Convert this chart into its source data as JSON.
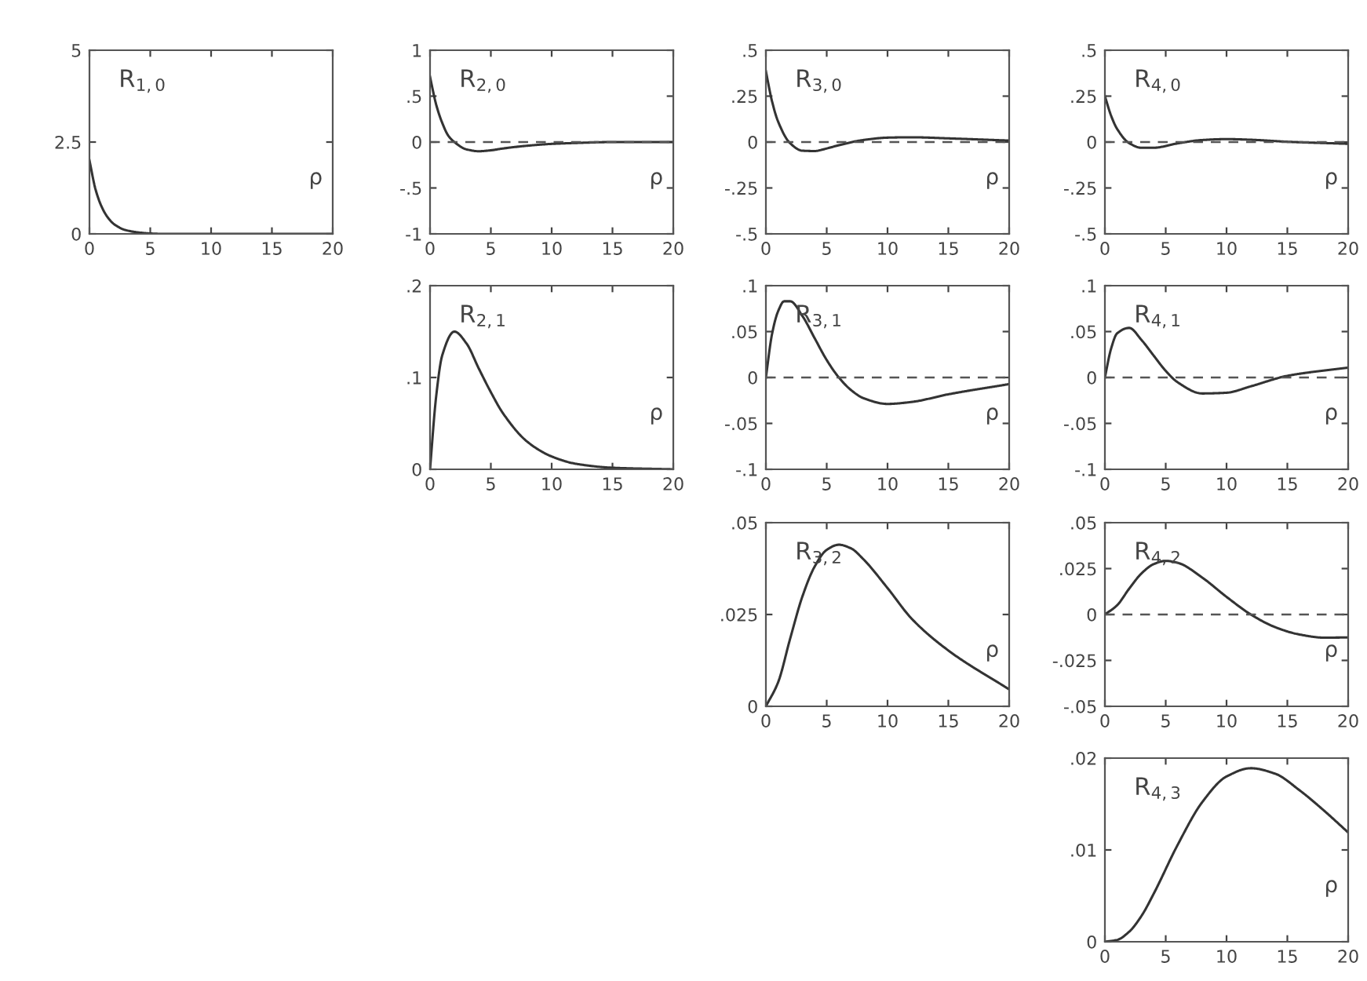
{
  "chart_data": [
    {
      "type": "line",
      "title": "R$_{1,0}$",
      "xlabel": "ρ",
      "color": "#333333",
      "x": [
        0,
        0.5,
        1,
        1.5,
        2,
        3,
        4,
        5,
        6,
        8,
        10,
        12,
        15,
        20
      ],
      "values": [
        2,
        1.21,
        0.74,
        0.45,
        0.27,
        0.1,
        0.04,
        0.01,
        0,
        0,
        0,
        0,
        0,
        0
      ],
      "xlim": [
        0,
        20
      ],
      "xticks": [
        0,
        5,
        10,
        15,
        20
      ],
      "ylim": [
        0,
        5
      ],
      "yticks": [
        0,
        2.5,
        5
      ]
    },
    {
      "type": "line",
      "title": "R$_{2,0}$",
      "xlabel": "ρ",
      "color": "#333333",
      "x": [
        0,
        0.5,
        1,
        1.5,
        2,
        3,
        4,
        5,
        6,
        8,
        10,
        12,
        15,
        20
      ],
      "values": [
        0.71,
        0.41,
        0.21,
        0.07,
        0,
        -0.08,
        -0.1,
        -0.09,
        -0.07,
        -0.04,
        -0.02,
        -0.01,
        0,
        0
      ],
      "xlim": [
        0,
        20
      ],
      "xticks": [
        0,
        5,
        10,
        15,
        20
      ],
      "ylim": [
        -1,
        1
      ],
      "yticks": [
        {
          "value": -1,
          "label": "-1"
        },
        {
          "value": -0.5,
          "label": "-.5"
        },
        0,
        {
          "value": 0.5,
          "label": ".5"
        },
        1
      ],
      "ref_lines": [
        {
          "axis": "y",
          "value": 0,
          "line_style": "dashed",
          "color": "#555555"
        }
      ]
    },
    {
      "type": "line",
      "title": "R$_{3,0}$",
      "xlabel": "ρ",
      "color": "#333333",
      "x": [
        0,
        0.5,
        1,
        2,
        3,
        4,
        5,
        6,
        8,
        10,
        12,
        15,
        20
      ],
      "values": [
        0.385,
        0.223,
        0.112,
        -0.007,
        -0.047,
        -0.049,
        -0.035,
        -0.017,
        0.011,
        0.024,
        0.026,
        0.02,
        0.008
      ],
      "xlim": [
        0,
        20
      ],
      "xticks": [
        0,
        5,
        10,
        15,
        20
      ],
      "ylim": [
        -0.5,
        0.5
      ],
      "yticks": [
        {
          "value": -0.5,
          "label": "-.5"
        },
        {
          "value": -0.25,
          "label": "-.25"
        },
        0,
        {
          "value": 0.25,
          "label": ".25"
        },
        {
          "value": 0.5,
          "label": ".5"
        }
      ],
      "ref_lines": [
        {
          "axis": "y",
          "value": 0,
          "line_style": "dashed",
          "color": "#555555"
        }
      ]
    },
    {
      "type": "line",
      "title": "R$_{4,0}$",
      "xlabel": "ρ",
      "color": "#333333",
      "x": [
        0,
        0.5,
        1,
        2,
        3,
        4,
        6,
        8,
        10,
        12,
        15,
        20
      ],
      "values": [
        0.25,
        0.145,
        0.072,
        -0.006,
        -0.031,
        -0.031,
        -0.007,
        0.011,
        0.016,
        0.0125,
        0.0016,
        -0.0095
      ],
      "xlim": [
        0,
        20
      ],
      "xticks": [
        0,
        5,
        10,
        15,
        20
      ],
      "ylim": [
        -0.5,
        0.5
      ],
      "yticks": [
        {
          "value": -0.5,
          "label": "-.5"
        },
        {
          "value": -0.25,
          "label": "-.25"
        },
        0,
        {
          "value": 0.25,
          "label": ".25"
        },
        {
          "value": 0.5,
          "label": ".5"
        }
      ],
      "ref_lines": [
        {
          "axis": "y",
          "value": 0,
          "line_style": "dashed",
          "color": "#555555"
        }
      ]
    },
    {
      "type": "line",
      "title": "R$_{2,1}$",
      "xlabel": "ρ",
      "color": "#333333",
      "x": [
        0,
        0.5,
        1,
        2,
        3,
        4,
        5,
        6,
        8,
        10,
        12,
        15,
        20
      ],
      "values": [
        0,
        0.079,
        0.124,
        0.15,
        0.137,
        0.11,
        0.084,
        0.061,
        0.03,
        0.014,
        0.006,
        0.0017,
        0
      ],
      "xlim": [
        0,
        20
      ],
      "xticks": [
        0,
        5,
        10,
        15,
        20
      ],
      "ylim": [
        0,
        0.2
      ],
      "yticks": [
        0,
        {
          "value": 0.1,
          "label": ".1"
        },
        {
          "value": 0.2,
          "label": ".2"
        }
      ]
    },
    {
      "type": "line",
      "title": "R$_{3,1}$",
      "xlabel": "ρ",
      "color": "#333333",
      "x": [
        0,
        0.5,
        1,
        1.5,
        2,
        3,
        4,
        5,
        6,
        7,
        8,
        10,
        12,
        15,
        20
      ],
      "values": [
        0,
        0.047,
        0.072,
        0.083,
        0.083,
        0.067,
        0.043,
        0.019,
        0,
        -0.0137,
        -0.0224,
        -0.0288,
        -0.0266,
        -0.0183,
        -0.0072
      ],
      "xlim": [
        0,
        20
      ],
      "xticks": [
        0,
        5,
        10,
        15,
        20
      ],
      "ylim": [
        -0.1,
        0.1
      ],
      "yticks": [
        {
          "value": -0.1,
          "label": "-.1"
        },
        {
          "value": -0.05,
          "label": "-.05"
        },
        0,
        {
          "value": 0.05,
          "label": ".05"
        },
        {
          "value": 0.1,
          "label": ".1"
        }
      ],
      "ref_lines": [
        {
          "axis": "y",
          "value": 0,
          "line_style": "dashed",
          "color": "#555555"
        }
      ]
    },
    {
      "type": "line",
      "title": "R$_{4,1}$",
      "xlabel": "ρ",
      "color": "#333333",
      "x": [
        0,
        0.5,
        1,
        2,
        3,
        4,
        5,
        6,
        8,
        10,
        12,
        15,
        20
      ],
      "values": [
        0,
        0.031,
        0.048,
        0.054,
        0.041,
        0.024,
        0.0072,
        -0.0054,
        -0.0174,
        -0.0166,
        -0.0096,
        0.0018,
        0.0108
      ],
      "xlim": [
        0,
        20
      ],
      "xticks": [
        0,
        5,
        10,
        15,
        20
      ],
      "ylim": [
        -0.1,
        0.1
      ],
      "yticks": [
        {
          "value": -0.1,
          "label": "-.1"
        },
        {
          "value": -0.05,
          "label": "-.05"
        },
        0,
        {
          "value": 0.05,
          "label": ".05"
        },
        {
          "value": 0.1,
          "label": ".1"
        }
      ],
      "ref_lines": [
        {
          "axis": "y",
          "value": 0,
          "line_style": "dashed",
          "color": "#555555"
        }
      ]
    },
    {
      "type": "line",
      "title": "R$_{3,2}$",
      "xlabel": "ρ",
      "color": "#333333",
      "x": [
        0,
        1,
        2,
        3,
        4,
        5,
        6,
        7,
        8,
        10,
        12,
        15,
        20
      ],
      "values": [
        0,
        0.0065,
        0.0185,
        0.0299,
        0.038,
        0.0426,
        0.044,
        0.043,
        0.0401,
        0.0322,
        0.0238,
        0.0152,
        0.0046
      ],
      "xlim": [
        0,
        20
      ],
      "xticks": [
        0,
        5,
        10,
        15,
        20
      ],
      "ylim": [
        0,
        0.05
      ],
      "yticks": [
        0,
        {
          "value": 0.025,
          "label": ".025"
        },
        {
          "value": 0.05,
          "label": ".05"
        }
      ]
    },
    {
      "type": "line",
      "title": "R$_{4,2}$",
      "xlabel": "ρ",
      "color": "#333333",
      "x": [
        0,
        1,
        2,
        3,
        4,
        5,
        6,
        8,
        10,
        12,
        14,
        16,
        18,
        20
      ],
      "values": [
        0,
        0.005,
        0.0141,
        0.0223,
        0.0274,
        0.0292,
        0.0281,
        0.0201,
        0.0096,
        0,
        -0.0069,
        -0.0109,
        -0.0126,
        -0.0125
      ],
      "xlim": [
        0,
        20
      ],
      "xticks": [
        0,
        5,
        10,
        15,
        20
      ],
      "ylim": [
        -0.05,
        0.05
      ],
      "yticks": [
        {
          "value": -0.05,
          "label": "-.05"
        },
        {
          "value": -0.025,
          "label": "-.025"
        },
        0,
        {
          "value": 0.025,
          "label": ".025"
        },
        {
          "value": 0.05,
          "label": ".05"
        }
      ],
      "ref_lines": [
        {
          "axis": "y",
          "value": 0,
          "line_style": "dashed",
          "color": "#555555"
        }
      ]
    },
    {
      "type": "line",
      "title": "R$_{4,3}$",
      "xlabel": "ρ",
      "color": "#333333",
      "x": [
        0,
        1,
        2,
        3,
        4,
        6,
        8,
        10,
        12,
        14,
        16,
        18,
        20
      ],
      "values": [
        0,
        0.0002,
        0.0011,
        0.0028,
        0.0052,
        0.0106,
        0.0152,
        0.018,
        0.0189,
        0.0183,
        0.0165,
        0.0143,
        0.0119
      ],
      "xlim": [
        0,
        20
      ],
      "xticks": [
        0,
        5,
        10,
        15,
        20
      ],
      "ylim": [
        0,
        0.02
      ],
      "yticks": [
        0,
        {
          "value": 0.01,
          "label": ".01"
        },
        {
          "value": 0.02,
          "label": ".02"
        }
      ]
    }
  ]
}
